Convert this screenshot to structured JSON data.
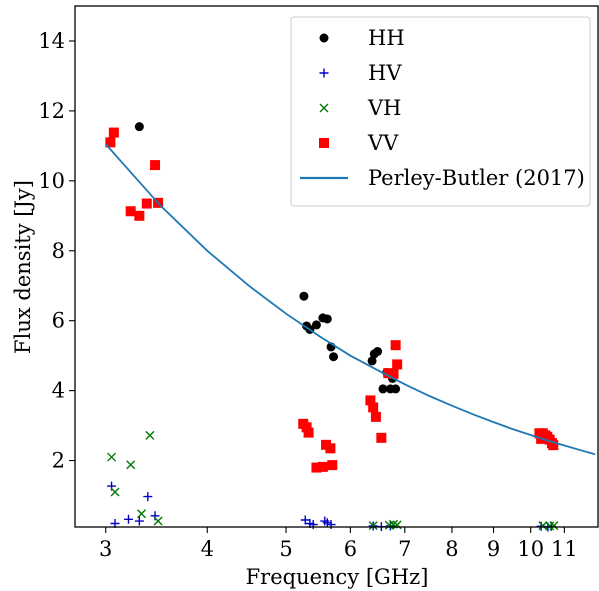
{
  "chart_data": {
    "type": "scatter",
    "xlabel": "Frequency [GHz]",
    "ylabel": "Flux density [Jy]",
    "x_scale": "log",
    "xlim": [
      2.75,
      12.1
    ],
    "ylim": [
      0.1,
      15.0
    ],
    "x_ticks": [
      {
        "value": 3,
        "label": "3"
      },
      {
        "value": 4,
        "label": "4"
      },
      {
        "value": 5,
        "label": "5"
      },
      {
        "value": 6,
        "label": "6"
      },
      {
        "value": 7,
        "label": "7"
      },
      {
        "value": 8,
        "label": "8"
      },
      {
        "value": 9,
        "label": "9"
      },
      {
        "value": 10,
        "label": "10"
      },
      {
        "value": 11,
        "label": "11"
      }
    ],
    "y_ticks": [
      {
        "value": 2,
        "label": "2"
      },
      {
        "value": 4,
        "label": "4"
      },
      {
        "value": 6,
        "label": "6"
      },
      {
        "value": 8,
        "label": "8"
      },
      {
        "value": 10,
        "label": "10"
      },
      {
        "value": 12,
        "label": "12"
      },
      {
        "value": 14,
        "label": "14"
      }
    ],
    "grid": false,
    "legend_position": "top-right",
    "series": [
      {
        "name": "HH",
        "marker": "circle",
        "color": "#000000",
        "points": [
          [
            3.3,
            11.55
          ],
          [
            5.26,
            6.7
          ],
          [
            5.3,
            5.85
          ],
          [
            5.35,
            5.75
          ],
          [
            5.45,
            5.88
          ],
          [
            5.55,
            6.08
          ],
          [
            5.62,
            6.05
          ],
          [
            5.68,
            5.25
          ],
          [
            5.72,
            4.97
          ],
          [
            6.38,
            4.85
          ],
          [
            6.42,
            5.05
          ],
          [
            6.48,
            5.12
          ],
          [
            6.58,
            4.05
          ],
          [
            6.65,
            4.52
          ],
          [
            6.72,
            4.05
          ],
          [
            6.76,
            4.35
          ],
          [
            6.82,
            4.05
          ],
          [
            10.3,
            2.78
          ],
          [
            10.5,
            2.65
          ],
          [
            10.6,
            2.55
          ]
        ]
      },
      {
        "name": "HV",
        "marker": "plus",
        "color": "#0000cc",
        "points": [
          [
            3.05,
            1.27
          ],
          [
            3.08,
            0.2
          ],
          [
            3.2,
            0.32
          ],
          [
            3.3,
            0.27
          ],
          [
            3.38,
            0.97
          ],
          [
            3.45,
            0.42
          ],
          [
            5.28,
            0.3
          ],
          [
            5.35,
            0.2
          ],
          [
            5.4,
            0.17
          ],
          [
            5.58,
            0.27
          ],
          [
            5.62,
            0.22
          ],
          [
            5.68,
            0.17
          ],
          [
            6.4,
            0.13
          ],
          [
            6.55,
            0.11
          ],
          [
            6.72,
            0.13
          ],
          [
            10.3,
            0.12
          ],
          [
            10.5,
            0.1
          ],
          [
            10.6,
            0.12
          ]
        ]
      },
      {
        "name": "VH",
        "marker": "x",
        "color": "#007700",
        "points": [
          [
            3.05,
            2.1
          ],
          [
            3.08,
            1.1
          ],
          [
            3.22,
            1.88
          ],
          [
            3.32,
            0.48
          ],
          [
            3.4,
            2.72
          ],
          [
            3.48,
            0.27
          ],
          [
            6.4,
            0.14
          ],
          [
            6.7,
            0.15
          ],
          [
            6.78,
            0.18
          ],
          [
            6.85,
            0.16
          ],
          [
            10.35,
            0.14
          ],
          [
            10.55,
            0.13
          ],
          [
            10.68,
            0.14
          ]
        ]
      },
      {
        "name": "VV",
        "marker": "square",
        "color": "#ff0000",
        "points": [
          [
            3.04,
            11.1
          ],
          [
            3.07,
            11.38
          ],
          [
            3.22,
            9.13
          ],
          [
            3.3,
            9.0
          ],
          [
            3.37,
            9.35
          ],
          [
            3.45,
            10.45
          ],
          [
            3.48,
            9.37
          ],
          [
            5.25,
            3.05
          ],
          [
            5.3,
            2.95
          ],
          [
            5.33,
            2.8
          ],
          [
            5.45,
            1.8
          ],
          [
            5.55,
            1.82
          ],
          [
            5.6,
            2.45
          ],
          [
            5.67,
            2.35
          ],
          [
            5.7,
            1.87
          ],
          [
            6.35,
            3.72
          ],
          [
            6.4,
            3.52
          ],
          [
            6.45,
            3.25
          ],
          [
            6.55,
            2.65
          ],
          [
            6.68,
            4.5
          ],
          [
            6.78,
            4.48
          ],
          [
            6.82,
            5.3
          ],
          [
            6.85,
            4.75
          ],
          [
            10.25,
            2.78
          ],
          [
            10.3,
            2.62
          ],
          [
            10.35,
            2.78
          ],
          [
            10.42,
            2.72
          ],
          [
            10.48,
            2.68
          ],
          [
            10.55,
            2.6
          ],
          [
            10.62,
            2.5
          ],
          [
            10.66,
            2.44
          ]
        ]
      },
      {
        "name": "Perley-Butler (2017)",
        "type": "line",
        "color": "#1f77b4",
        "points": [
          [
            3.0,
            11.05
          ],
          [
            3.5,
            9.3
          ],
          [
            4.0,
            8.0
          ],
          [
            4.5,
            7.0
          ],
          [
            5.0,
            6.2
          ],
          [
            5.5,
            5.55
          ],
          [
            6.0,
            5.0
          ],
          [
            6.5,
            4.57
          ],
          [
            7.0,
            4.18
          ],
          [
            7.5,
            3.85
          ],
          [
            8.0,
            3.57
          ],
          [
            8.5,
            3.32
          ],
          [
            9.0,
            3.1
          ],
          [
            9.5,
            2.9
          ],
          [
            10.0,
            2.73
          ],
          [
            10.5,
            2.57
          ],
          [
            11.0,
            2.43
          ],
          [
            11.5,
            2.3
          ],
          [
            12.0,
            2.18
          ]
        ]
      }
    ]
  }
}
